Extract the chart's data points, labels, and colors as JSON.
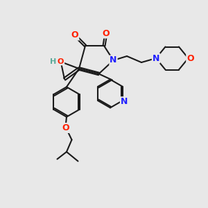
{
  "bg_color": "#e8e8e8",
  "bond_color": "#1a1a1a",
  "bond_width": 1.5,
  "atom_colors": {
    "O": "#ff2000",
    "N": "#2020ff",
    "C": "#1a1a1a",
    "H": "#5aaa99"
  }
}
